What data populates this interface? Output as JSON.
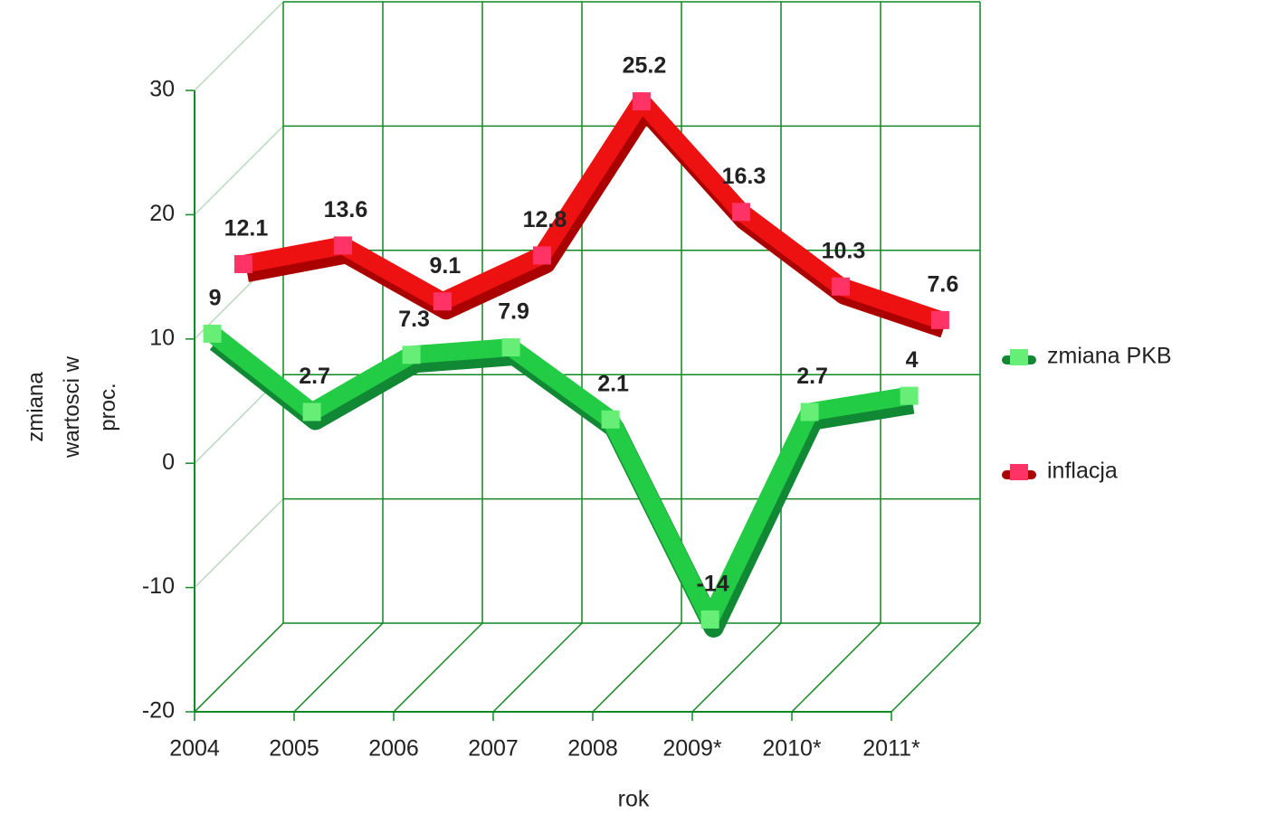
{
  "chart_data": {
    "type": "line3d",
    "x_label": "rok",
    "y_label": "zmiana wartosci w proc.",
    "categories": [
      "2004",
      "2005",
      "2006",
      "2007",
      "2008",
      "2009*",
      "2010*",
      "2011*"
    ],
    "series": [
      {
        "name": "zmiana PKB",
        "color": "#22cc44",
        "values": [
          9,
          2.7,
          7.3,
          7.9,
          2.1,
          -14,
          2.7,
          4
        ]
      },
      {
        "name": "inflacja",
        "color": "#ee1111",
        "values": [
          12.1,
          13.6,
          9.1,
          12.8,
          25.2,
          16.3,
          10.3,
          7.6
        ]
      }
    ],
    "ylim": [
      -20,
      30
    ],
    "yticks": [
      -20,
      -10,
      0,
      10,
      20,
      30
    ],
    "grid": true,
    "legend": "right",
    "grid_color": "#118822"
  }
}
